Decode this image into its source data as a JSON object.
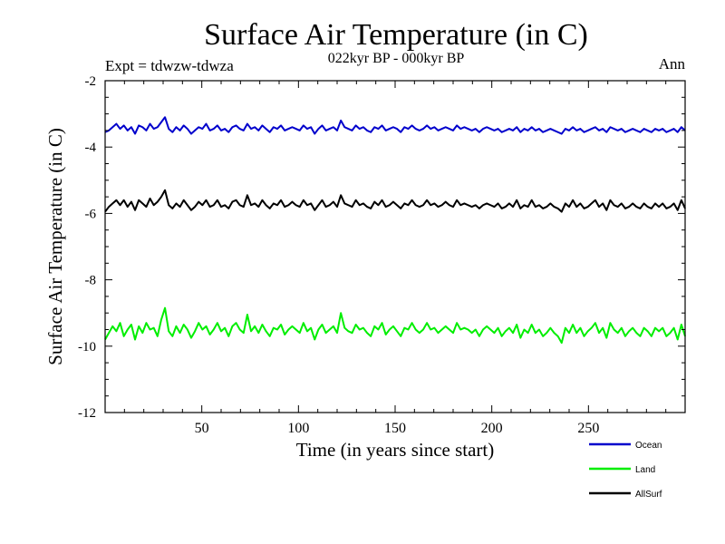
{
  "chart_data": {
    "type": "line",
    "title": "Surface Air Temperature (in C)",
    "subtitle": "022kyr BP - 000kyr BP",
    "experiment_label": "Expt = tdwzw-tdwza",
    "period_label": "Ann",
    "xlabel": "Time (in years since start)",
    "ylabel": "Surface Air Temperature (in C)",
    "xlim": [
      0,
      300
    ],
    "ylim": [
      -12,
      -2
    ],
    "xticks": [
      50,
      100,
      150,
      200,
      250
    ],
    "yticks": [
      -2,
      -4,
      -6,
      -8,
      -10,
      -12
    ],
    "legend_position": "bottom-right",
    "series": [
      {
        "name": "Ocean",
        "color": "#0000cc",
        "mean": -3.45,
        "amplitude": 0.15,
        "values": [
          -3.55,
          -3.5,
          -3.4,
          -3.3,
          -3.45,
          -3.35,
          -3.5,
          -3.4,
          -3.6,
          -3.35,
          -3.4,
          -3.5,
          -3.3,
          -3.45,
          -3.4,
          -3.25,
          -3.1,
          -3.45,
          -3.55,
          -3.4,
          -3.5,
          -3.35,
          -3.45,
          -3.6,
          -3.5,
          -3.4,
          -3.45,
          -3.3,
          -3.5,
          -3.45,
          -3.35,
          -3.5,
          -3.45,
          -3.55,
          -3.4,
          -3.35,
          -3.45,
          -3.5,
          -3.3,
          -3.45,
          -3.4,
          -3.5,
          -3.35,
          -3.45,
          -3.55,
          -3.4,
          -3.45,
          -3.35,
          -3.5,
          -3.45,
          -3.4,
          -3.45,
          -3.5,
          -3.35,
          -3.45,
          -3.4,
          -3.6,
          -3.45,
          -3.35,
          -3.5,
          -3.45,
          -3.4,
          -3.5,
          -3.2,
          -3.4,
          -3.45,
          -3.5,
          -3.35,
          -3.45,
          -3.4,
          -3.5,
          -3.55,
          -3.4,
          -3.45,
          -3.35,
          -3.5,
          -3.45,
          -3.4,
          -3.45,
          -3.55,
          -3.4,
          -3.45,
          -3.35,
          -3.45,
          -3.5,
          -3.45,
          -3.35,
          -3.45,
          -3.4,
          -3.5,
          -3.45,
          -3.4,
          -3.45,
          -3.5,
          -3.35,
          -3.45,
          -3.4,
          -3.45,
          -3.5,
          -3.45,
          -3.55,
          -3.45,
          -3.4,
          -3.45,
          -3.5,
          -3.45,
          -3.55,
          -3.5,
          -3.45,
          -3.5,
          -3.4,
          -3.55,
          -3.45,
          -3.5,
          -3.4,
          -3.5,
          -3.45,
          -3.55,
          -3.5,
          -3.45,
          -3.5,
          -3.55,
          -3.6,
          -3.45,
          -3.5,
          -3.4,
          -3.5,
          -3.45,
          -3.55,
          -3.5,
          -3.45,
          -3.4,
          -3.5,
          -3.45,
          -3.55,
          -3.4,
          -3.45,
          -3.5,
          -3.45,
          -3.55,
          -3.5,
          -3.45,
          -3.5,
          -3.55,
          -3.45,
          -3.5,
          -3.55,
          -3.45,
          -3.5,
          -3.45,
          -3.55,
          -3.5,
          -3.45,
          -3.55,
          -3.4,
          -3.5
        ]
      },
      {
        "name": "Land",
        "color": "#00ee00",
        "mean": -9.55,
        "amplitude": 0.35,
        "values": [
          -9.8,
          -9.6,
          -9.4,
          -9.55,
          -9.3,
          -9.7,
          -9.5,
          -9.35,
          -9.8,
          -9.4,
          -9.6,
          -9.3,
          -9.5,
          -9.45,
          -9.7,
          -9.2,
          -8.85,
          -9.55,
          -9.7,
          -9.4,
          -9.6,
          -9.35,
          -9.5,
          -9.75,
          -9.55,
          -9.3,
          -9.5,
          -9.4,
          -9.65,
          -9.5,
          -9.3,
          -9.55,
          -9.45,
          -9.7,
          -9.4,
          -9.3,
          -9.5,
          -9.6,
          -9.05,
          -9.55,
          -9.4,
          -9.6,
          -9.35,
          -9.55,
          -9.7,
          -9.45,
          -9.5,
          -9.35,
          -9.65,
          -9.5,
          -9.4,
          -9.5,
          -9.6,
          -9.3,
          -9.55,
          -9.45,
          -9.8,
          -9.5,
          -9.35,
          -9.6,
          -9.5,
          -9.4,
          -9.6,
          -9.0,
          -9.45,
          -9.55,
          -9.6,
          -9.35,
          -9.5,
          -9.45,
          -9.6,
          -9.7,
          -9.4,
          -9.5,
          -9.3,
          -9.65,
          -9.5,
          -9.4,
          -9.55,
          -9.7,
          -9.45,
          -9.5,
          -9.3,
          -9.5,
          -9.6,
          -9.5,
          -9.3,
          -9.5,
          -9.45,
          -9.6,
          -9.5,
          -9.4,
          -9.5,
          -9.6,
          -9.3,
          -9.5,
          -9.45,
          -9.5,
          -9.6,
          -9.5,
          -9.7,
          -9.5,
          -9.4,
          -9.5,
          -9.6,
          -9.45,
          -9.7,
          -9.55,
          -9.45,
          -9.6,
          -9.35,
          -9.75,
          -9.5,
          -9.6,
          -9.35,
          -9.6,
          -9.5,
          -9.7,
          -9.6,
          -9.45,
          -9.6,
          -9.7,
          -9.9,
          -9.45,
          -9.6,
          -9.35,
          -9.6,
          -9.45,
          -9.7,
          -9.55,
          -9.45,
          -9.3,
          -9.6,
          -9.45,
          -9.75,
          -9.3,
          -9.5,
          -9.6,
          -9.45,
          -9.7,
          -9.55,
          -9.45,
          -9.6,
          -9.7,
          -9.45,
          -9.55,
          -9.7,
          -9.45,
          -9.55,
          -9.45,
          -9.7,
          -9.6,
          -9.45,
          -9.8,
          -9.35,
          -9.7
        ]
      },
      {
        "name": "AllSurf",
        "color": "#000000",
        "mean": -5.75,
        "amplitude": 0.15,
        "values": [
          -5.95,
          -5.8,
          -5.7,
          -5.6,
          -5.75,
          -5.6,
          -5.8,
          -5.65,
          -5.9,
          -5.6,
          -5.7,
          -5.8,
          -5.55,
          -5.75,
          -5.65,
          -5.5,
          -5.3,
          -5.75,
          -5.85,
          -5.7,
          -5.8,
          -5.6,
          -5.75,
          -5.9,
          -5.8,
          -5.65,
          -5.75,
          -5.6,
          -5.8,
          -5.75,
          -5.6,
          -5.8,
          -5.75,
          -5.85,
          -5.65,
          -5.6,
          -5.75,
          -5.8,
          -5.45,
          -5.75,
          -5.7,
          -5.8,
          -5.6,
          -5.75,
          -5.85,
          -5.7,
          -5.75,
          -5.6,
          -5.8,
          -5.75,
          -5.65,
          -5.75,
          -5.8,
          -5.6,
          -5.75,
          -5.7,
          -5.9,
          -5.75,
          -5.6,
          -5.8,
          -5.75,
          -5.65,
          -5.8,
          -5.45,
          -5.7,
          -5.75,
          -5.8,
          -5.6,
          -5.75,
          -5.7,
          -5.8,
          -5.85,
          -5.65,
          -5.75,
          -5.6,
          -5.8,
          -5.75,
          -5.65,
          -5.75,
          -5.85,
          -5.7,
          -5.75,
          -5.6,
          -5.75,
          -5.8,
          -5.75,
          -5.6,
          -5.75,
          -5.7,
          -5.8,
          -5.75,
          -5.65,
          -5.75,
          -5.8,
          -5.6,
          -5.75,
          -5.7,
          -5.75,
          -5.8,
          -5.75,
          -5.85,
          -5.75,
          -5.7,
          -5.75,
          -5.8,
          -5.7,
          -5.85,
          -5.8,
          -5.7,
          -5.8,
          -5.6,
          -5.85,
          -5.75,
          -5.8,
          -5.6,
          -5.8,
          -5.75,
          -5.85,
          -5.8,
          -5.7,
          -5.8,
          -5.85,
          -5.95,
          -5.7,
          -5.8,
          -5.6,
          -5.8,
          -5.7,
          -5.85,
          -5.8,
          -5.7,
          -5.6,
          -5.8,
          -5.7,
          -5.9,
          -5.6,
          -5.75,
          -5.8,
          -5.7,
          -5.85,
          -5.8,
          -5.7,
          -5.8,
          -5.85,
          -5.7,
          -5.8,
          -5.85,
          -5.7,
          -5.8,
          -5.7,
          -5.85,
          -5.8,
          -5.7,
          -5.9,
          -5.6,
          -5.85
        ]
      }
    ]
  }
}
